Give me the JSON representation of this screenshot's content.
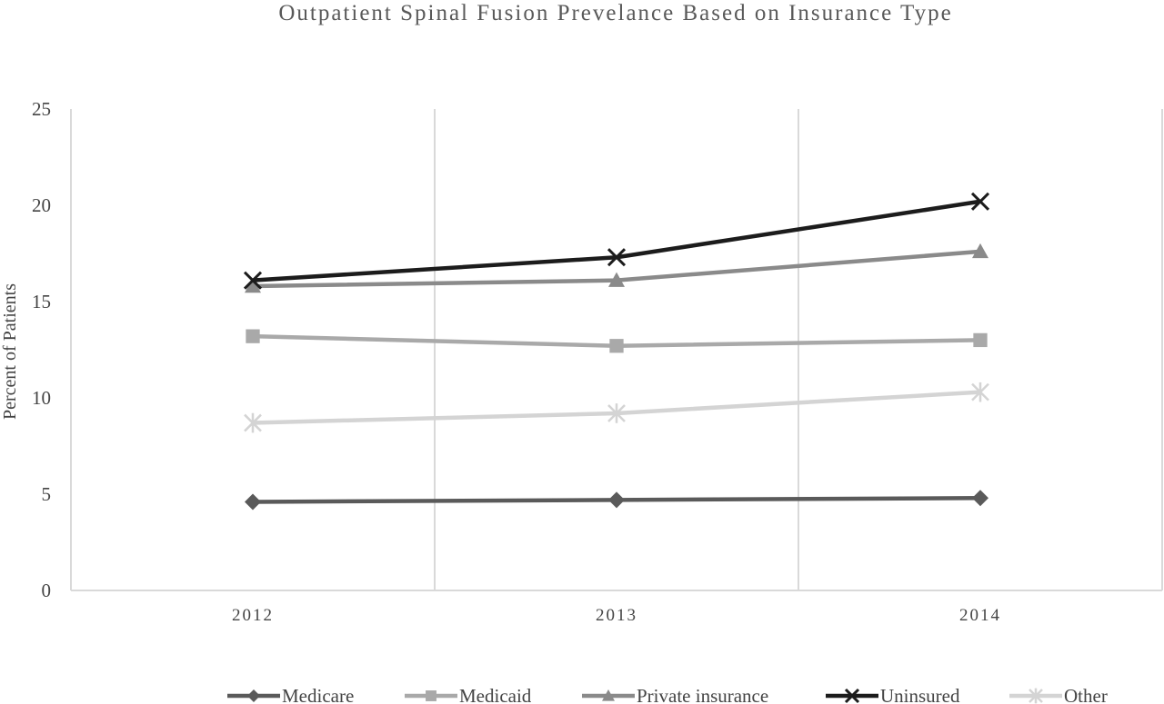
{
  "chart_data": {
    "type": "line",
    "title": "Outpatient Spinal Fusion Prevelance Based on Insurance Type",
    "xlabel": "",
    "ylabel": "Percent of Patients",
    "categories": [
      "2012",
      "2013",
      "2014"
    ],
    "ylim": [
      0,
      25
    ],
    "yticks": [
      0,
      5,
      10,
      15,
      20,
      25
    ],
    "grid": "vertical",
    "legend_position": "bottom",
    "series": [
      {
        "name": "Medicare",
        "values": [
          4.6,
          4.7,
          4.8
        ],
        "color": "#5a5a5a",
        "marker": "diamond"
      },
      {
        "name": "Medicaid",
        "values": [
          13.2,
          12.7,
          13.0
        ],
        "color": "#a9a9a9",
        "marker": "square"
      },
      {
        "name": "Private insurance",
        "values": [
          15.8,
          16.1,
          17.6
        ],
        "color": "#8a8a8a",
        "marker": "triangle"
      },
      {
        "name": "Uninsured",
        "values": [
          16.1,
          17.3,
          20.2
        ],
        "color": "#1c1c1c",
        "marker": "x"
      },
      {
        "name": "Other",
        "values": [
          8.7,
          9.2,
          10.3
        ],
        "color": "#d4d4d4",
        "marker": "star"
      }
    ]
  }
}
